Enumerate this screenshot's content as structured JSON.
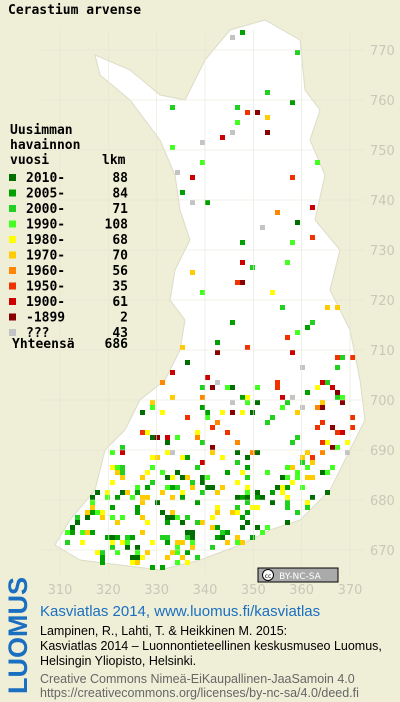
{
  "header": {
    "title": "Cerastium arvense"
  },
  "legend": {
    "heading": [
      "Uusimman",
      "havainnon",
      "vuosi"
    ],
    "count_label": "lkm",
    "rows": [
      {
        "label": "2010-",
        "count": 88,
        "color": "#006e00"
      },
      {
        "label": "2005-",
        "count": 84,
        "color": "#00a000"
      },
      {
        "label": "2000-",
        "count": 71,
        "color": "#22d022"
      },
      {
        "label": "1990-",
        "count": 108,
        "color": "#44ff22"
      },
      {
        "label": "1980-",
        "count": 68,
        "color": "#ffff00"
      },
      {
        "label": "1970-",
        "count": 70,
        "color": "#ffcc00"
      },
      {
        "label": "1960-",
        "count": 56,
        "color": "#ff8800"
      },
      {
        "label": "1950-",
        "count": 35,
        "color": "#ee3300"
      },
      {
        "label": "1900-",
        "count": 61,
        "color": "#cc0000"
      },
      {
        "label": "-1899",
        "count": 2,
        "color": "#880000"
      },
      {
        "label": "???",
        "count": 43,
        "color": "#c4c4c4"
      }
    ],
    "total_label": "Yhteensä",
    "total": 686
  },
  "map": {
    "xticks": [
      310,
      320,
      330,
      340,
      350,
      360,
      370
    ],
    "yticks": [
      670,
      680,
      690,
      700,
      710,
      720,
      730,
      740,
      750,
      760,
      770
    ]
  },
  "footer": {
    "logo": "LUOMUS",
    "atlas": "Kasviatlas 2014, www.luomus.fi/kasviatlas",
    "citation": [
      "Lampinen, R., Lahti, T. & Heikkinen M. 2015:",
      "Kasviatlas 2014 – Luonnontieteellinen keskusmuseo Luomus,",
      "Helsingin Yliopisto, Helsinki."
    ],
    "license": [
      "Creative Commons Nimeä-EiKaupallinen-JaaSamoin 4.0",
      "https://creativecommons.org/licenses/by-nc-sa/4.0/deed.fi"
    ],
    "badge": "BY-NC-SA"
  }
}
